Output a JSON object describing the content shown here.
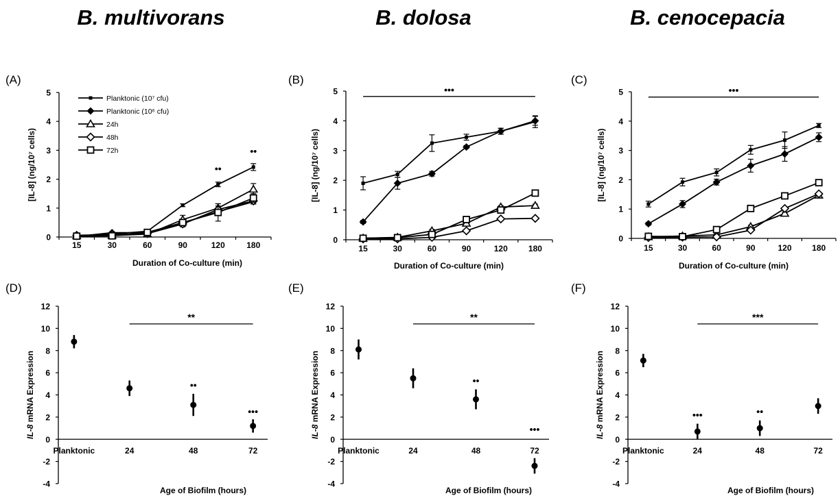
{
  "species": [
    "B. multivorans",
    "B. dolosa",
    "B. cenocepacia"
  ],
  "colors": {
    "ink": "#000000",
    "background": "#ffffff"
  },
  "chart_data": [
    {
      "panel": "(A)",
      "type": "line",
      "ylabel": "[IL-8] (ng/10⁷ cells)",
      "xlabel": "Duration of Co-culture (min)",
      "categories": [
        "15",
        "30",
        "60",
        "90",
        "120",
        "180"
      ],
      "ylim": [
        0,
        5
      ],
      "yticks": [
        0,
        1,
        2,
        3,
        4,
        5
      ],
      "legend": {
        "placement": "top-left",
        "entries": [
          "Planktonic (10⁷ cfu)",
          "Planktonic (10⁶ cfu)",
          "24h",
          "48h",
          "72h"
        ]
      },
      "series": [
        {
          "name": "Planktonic (10⁷ cfu)",
          "marker": "small-square",
          "values": [
            0.02,
            0.1,
            0.2,
            1.1,
            1.82,
            2.42
          ],
          "errors": [
            0.03,
            0.03,
            0.03,
            0.05,
            0.08,
            0.12
          ]
        },
        {
          "name": "Planktonic (10⁶ cfu)",
          "marker": "diamond-filled",
          "values": [
            0.02,
            0.15,
            0.15,
            0.48,
            0.88,
            1.22
          ],
          "errors": [
            0.03,
            0.03,
            0.03,
            0.1,
            0.1,
            0.08
          ]
        },
        {
          "name": "24h",
          "marker": "triangle-open",
          "values": [
            0.04,
            0.05,
            0.1,
            0.6,
            1.0,
            1.65
          ],
          "errors": [
            0.03,
            0.03,
            0.03,
            0.15,
            0.15,
            0.2
          ]
        },
        {
          "name": "48h",
          "marker": "diamond-open",
          "values": [
            0.06,
            0.08,
            0.12,
            0.45,
            0.95,
            1.25
          ],
          "errors": [
            0.03,
            0.03,
            0.03,
            0.1,
            0.12,
            0.1
          ]
        },
        {
          "name": "72h",
          "marker": "square-open",
          "values": [
            0.03,
            0.04,
            0.16,
            0.5,
            0.85,
            1.35
          ],
          "errors": [
            0.03,
            0.03,
            0.05,
            0.1,
            0.3,
            0.15
          ]
        }
      ],
      "significance": [
        {
          "text": "••",
          "x": "120",
          "y": 2.25
        },
        {
          "text": "••",
          "x": "180",
          "y": 2.85
        }
      ],
      "bracket": null
    },
    {
      "panel": "(B)",
      "type": "line",
      "ylabel": "[IL-8] (ng/10⁷ cells)",
      "xlabel": "Duration of Co-culture (min)",
      "categories": [
        "15",
        "30",
        "60",
        "90",
        "120",
        "180"
      ],
      "ylim": [
        0,
        5
      ],
      "yticks": [
        0,
        1,
        2,
        3,
        4,
        5
      ],
      "legend": null,
      "series": [
        {
          "name": "Planktonic (10⁷ cfu)",
          "marker": "small-square",
          "values": [
            1.9,
            2.2,
            3.25,
            3.45,
            3.65,
            3.97
          ],
          "errors": [
            0.22,
            0.1,
            0.28,
            0.1,
            0.1,
            0.2
          ]
        },
        {
          "name": "Planktonic (10⁶ cfu)",
          "marker": "diamond-filled",
          "values": [
            0.6,
            1.9,
            2.22,
            3.12,
            3.65,
            4.0
          ],
          "errors": [
            0.05,
            0.2,
            0.08,
            0.05,
            0.1,
            0.15
          ]
        },
        {
          "name": "24h",
          "marker": "triangle-open",
          "values": [
            0.05,
            0.08,
            0.3,
            0.55,
            1.1,
            1.15
          ],
          "errors": [
            0.03,
            0.03,
            0.05,
            0.05,
            0.05,
            0.05
          ]
        },
        {
          "name": "48h",
          "marker": "diamond-open",
          "values": [
            0.03,
            0.03,
            0.08,
            0.3,
            0.7,
            0.72
          ],
          "errors": [
            0.03,
            0.03,
            0.03,
            0.03,
            0.05,
            0.05
          ]
        },
        {
          "name": "72h",
          "marker": "square-open",
          "values": [
            0.05,
            0.07,
            0.18,
            0.68,
            1.0,
            1.57
          ],
          "errors": [
            0.03,
            0.03,
            0.03,
            0.05,
            0.05,
            0.1
          ]
        }
      ],
      "significance": [],
      "bracket": {
        "text": "•••",
        "from": "15",
        "to": "180",
        "y": 4.82
      }
    },
    {
      "panel": "(C)",
      "type": "line",
      "ylabel": "[IL-8] (ng/10⁷ cells)",
      "xlabel": "Duration of Co-culture (min)",
      "categories": [
        "15",
        "30",
        "60",
        "90",
        "120",
        "180"
      ],
      "ylim": [
        0,
        5
      ],
      "yticks": [
        0,
        1,
        2,
        3,
        4,
        5
      ],
      "legend": null,
      "series": [
        {
          "name": "Planktonic (10⁷ cfu)",
          "marker": "small-square",
          "values": [
            1.17,
            1.92,
            2.25,
            3.02,
            3.35,
            3.85
          ],
          "errors": [
            0.1,
            0.13,
            0.12,
            0.15,
            0.28,
            0.07
          ]
        },
        {
          "name": "Planktonic (10⁶ cfu)",
          "marker": "diamond-filled",
          "values": [
            0.5,
            1.17,
            1.92,
            2.48,
            2.88,
            3.45
          ],
          "errors": [
            0.05,
            0.12,
            0.1,
            0.22,
            0.25,
            0.15
          ]
        },
        {
          "name": "24h",
          "marker": "triangle-open",
          "values": [
            0.05,
            0.08,
            0.12,
            0.4,
            0.85,
            1.47
          ],
          "errors": [
            0.03,
            0.03,
            0.03,
            0.05,
            0.05,
            0.05
          ]
        },
        {
          "name": "48h",
          "marker": "diamond-open",
          "values": [
            0.03,
            0.04,
            0.05,
            0.28,
            1.02,
            1.52
          ],
          "errors": [
            0.03,
            0.03,
            0.03,
            0.03,
            0.05,
            0.05
          ]
        },
        {
          "name": "72h",
          "marker": "square-open",
          "values": [
            0.07,
            0.06,
            0.3,
            1.02,
            1.45,
            1.9
          ],
          "errors": [
            0.03,
            0.03,
            0.05,
            0.05,
            0.05,
            0.05
          ]
        }
      ],
      "significance": [],
      "bracket": {
        "text": "•••",
        "from": "15",
        "to": "180",
        "y": 4.82
      }
    },
    {
      "panel": "(D)",
      "type": "scatter",
      "ylabel": "IL-8 mRNA Expression",
      "ylabel_italic": "IL-8",
      "ylabel_rest": " mRNA Expression",
      "xlabel": "Age of Biofilm (hours)",
      "categories": [
        "Planktonic",
        "24",
        "48",
        "72"
      ],
      "ylim": [
        -4,
        12
      ],
      "yticks": [
        -4,
        -2,
        0,
        2,
        4,
        6,
        8,
        10,
        12
      ],
      "values": [
        8.8,
        4.6,
        3.1,
        1.2
      ],
      "errors": [
        0.6,
        0.7,
        1.0,
        0.6
      ],
      "significance": [
        {
          "text": "••",
          "x": "48",
          "y": 4.6
        },
        {
          "text": "•••",
          "x": "72",
          "y": 2.2
        }
      ],
      "bracket": {
        "text": "**",
        "from": "24",
        "to": "72",
        "y": 10.4
      }
    },
    {
      "panel": "(E)",
      "type": "scatter",
      "ylabel": "IL-8 mRNA Expression",
      "ylabel_italic": "IL-8",
      "ylabel_rest": " mRNA Expression",
      "xlabel": "Age of Biofilm (hours)",
      "categories": [
        "Planktonic",
        "24",
        "48",
        "72"
      ],
      "ylim": [
        -4,
        12
      ],
      "yticks": [
        -4,
        -2,
        0,
        2,
        4,
        6,
        8,
        10,
        12
      ],
      "values": [
        8.1,
        5.5,
        3.6,
        -2.4
      ],
      "errors": [
        0.9,
        0.9,
        0.9,
        0.7
      ],
      "significance": [
        {
          "text": "••",
          "x": "48",
          "y": 5.0
        },
        {
          "text": "•••",
          "x": "72",
          "y": 0.6
        }
      ],
      "bracket": {
        "text": "**",
        "from": "24",
        "to": "72",
        "y": 10.4
      }
    },
    {
      "panel": "(F)",
      "type": "scatter",
      "ylabel": "IL-8 mRNA Expression",
      "ylabel_italic": "IL-8",
      "ylabel_rest": " mRNA Expression",
      "xlabel": "Age of Biofilm (hours)",
      "categories": [
        "Planktonic",
        "24",
        "48",
        "72"
      ],
      "ylim": [
        -4,
        12
      ],
      "yticks": [
        -4,
        -2,
        0,
        2,
        4,
        6,
        8,
        10,
        12
      ],
      "values": [
        7.1,
        0.7,
        1.0,
        3.0
      ],
      "errors": [
        0.6,
        0.7,
        0.7,
        0.7
      ],
      "significance": [
        {
          "text": "•••",
          "x": "24",
          "y": 1.9
        },
        {
          "text": "••",
          "x": "48",
          "y": 2.2
        }
      ],
      "bracket": {
        "text": "***",
        "from": "24",
        "to": "72",
        "y": 10.4
      }
    }
  ]
}
